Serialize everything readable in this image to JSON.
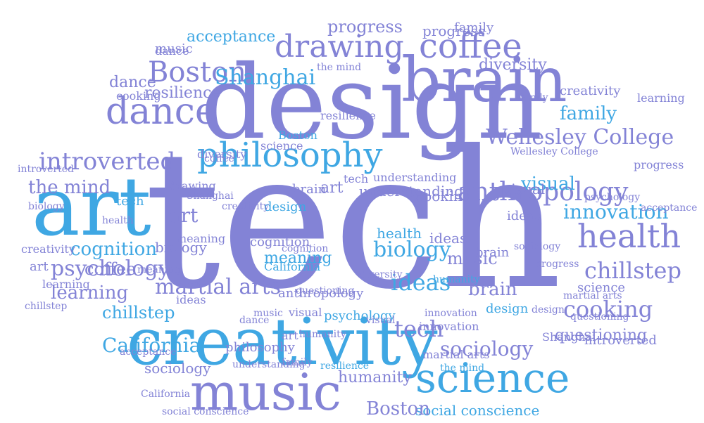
{
  "palette": {
    "purple": "#8383d6",
    "blue": "#3fa7e3",
    "background": "#ffffff"
  },
  "words": [
    {
      "text": "tech",
      "c": "p"
    },
    {
      "text": "design",
      "c": "p"
    },
    {
      "text": "art",
      "c": "b"
    },
    {
      "text": "creativity",
      "c": "b"
    },
    {
      "text": "brain",
      "c": "p"
    },
    {
      "text": "music",
      "c": "p"
    },
    {
      "text": "science",
      "c": "b"
    },
    {
      "text": "philosophy",
      "c": "b"
    },
    {
      "text": "dance",
      "c": "p"
    },
    {
      "text": "health",
      "c": "p"
    },
    {
      "text": "coffee",
      "c": "p"
    },
    {
      "text": "drawing",
      "c": "p"
    },
    {
      "text": "anthropology",
      "c": "p"
    },
    {
      "text": "Boston",
      "c": "p"
    },
    {
      "text": "introverted",
      "c": "p"
    },
    {
      "text": "Shanghai",
      "c": "b"
    },
    {
      "text": "Wellesley College",
      "c": "p"
    },
    {
      "text": "biology",
      "c": "b"
    },
    {
      "text": "chillstep",
      "c": "p"
    },
    {
      "text": "psychology",
      "c": "p"
    },
    {
      "text": "martial arts",
      "c": "p"
    },
    {
      "text": "cooking",
      "c": "p"
    },
    {
      "text": "ideas",
      "c": "b"
    },
    {
      "text": "sociology",
      "c": "p"
    },
    {
      "text": "California",
      "c": "b"
    },
    {
      "text": "innovation",
      "c": "b"
    },
    {
      "text": "visual",
      "c": "b"
    },
    {
      "text": "family",
      "c": "b"
    },
    {
      "text": "the mind",
      "c": "p"
    },
    {
      "text": "learning",
      "c": "p"
    },
    {
      "text": "cognition",
      "c": "b"
    },
    {
      "text": "progress",
      "c": "p"
    },
    {
      "text": "acceptance",
      "c": "b"
    },
    {
      "text": "diversity",
      "c": "p"
    },
    {
      "text": "resilience",
      "c": "p"
    },
    {
      "text": "meaning",
      "c": "b"
    },
    {
      "text": "questioning",
      "c": "p"
    },
    {
      "text": "understanding",
      "c": "p"
    },
    {
      "text": "humanity",
      "c": "p"
    },
    {
      "text": "social conscience",
      "c": "b"
    },
    {
      "text": "art",
      "c": "p"
    },
    {
      "text": "tech",
      "c": "p"
    },
    {
      "text": "art",
      "c": "p"
    },
    {
      "text": "visual",
      "c": "p"
    },
    {
      "text": "brain",
      "c": "p"
    },
    {
      "text": "design",
      "c": "b"
    },
    {
      "text": "Boston",
      "c": "p"
    },
    {
      "text": "ideas",
      "c": "p"
    },
    {
      "text": "music",
      "c": "p"
    },
    {
      "text": "sociology",
      "c": "p"
    },
    {
      "text": "cooking",
      "c": "p"
    },
    {
      "text": "brain",
      "c": "p"
    },
    {
      "text": "learning",
      "c": "p"
    },
    {
      "text": "California",
      "c": "b"
    },
    {
      "text": "dance",
      "c": "p"
    },
    {
      "text": "creativity",
      "c": "p"
    },
    {
      "text": "health",
      "c": "b"
    },
    {
      "text": "psychology",
      "c": "b"
    },
    {
      "text": "coffee",
      "c": "p"
    },
    {
      "text": "biology",
      "c": "p"
    },
    {
      "text": "tech",
      "c": "b"
    },
    {
      "text": "the mind",
      "c": "p"
    },
    {
      "text": "art",
      "c": "p"
    },
    {
      "text": "meaning",
      "c": "p"
    },
    {
      "text": "progress",
      "c": "p"
    },
    {
      "text": "family",
      "c": "p"
    },
    {
      "text": "diversity",
      "c": "p"
    },
    {
      "text": "chillstep",
      "c": "b"
    },
    {
      "text": "visual",
      "c": "p"
    },
    {
      "text": "design",
      "c": "b"
    },
    {
      "text": "humanity",
      "c": "b"
    },
    {
      "text": "science",
      "c": "p"
    },
    {
      "text": "questioning",
      "c": "p"
    },
    {
      "text": "innovation",
      "c": "p"
    },
    {
      "text": "creativity",
      "c": "p"
    },
    {
      "text": "introverted",
      "c": "p"
    },
    {
      "text": "martial arts",
      "c": "p"
    },
    {
      "text": "acceptance",
      "c": "p"
    },
    {
      "text": "music",
      "c": "p"
    },
    {
      "text": "Shanghai",
      "c": "p"
    },
    {
      "text": "progress",
      "c": "p"
    },
    {
      "text": "dance",
      "c": "p"
    },
    {
      "text": "understanding",
      "c": "p"
    },
    {
      "text": "resilience",
      "c": "p"
    },
    {
      "text": "ideas",
      "c": "p"
    },
    {
      "text": "cognition",
      "c": "p"
    },
    {
      "text": "family",
      "c": "p"
    },
    {
      "text": "Boston",
      "c": "b"
    },
    {
      "text": "drawing",
      "c": "p"
    },
    {
      "text": "anthropology",
      "c": "p"
    },
    {
      "text": "sociology",
      "c": "p"
    },
    {
      "text": "brain",
      "c": "p"
    },
    {
      "text": "tech",
      "c": "p"
    },
    {
      "text": "health",
      "c": "p"
    },
    {
      "text": "cooking",
      "c": "p"
    },
    {
      "text": "California",
      "c": "p"
    },
    {
      "text": "philosophy",
      "c": "p"
    },
    {
      "text": "science",
      "c": "p"
    },
    {
      "text": "learning",
      "c": "p"
    },
    {
      "text": "meaning",
      "c": "p"
    },
    {
      "text": "coffee",
      "c": "p"
    },
    {
      "text": "diversity",
      "c": "p"
    },
    {
      "text": "the mind",
      "c": "b"
    },
    {
      "text": "visual",
      "c": "p"
    },
    {
      "text": "art",
      "c": "p"
    },
    {
      "text": "design",
      "c": "p"
    },
    {
      "text": "innovation",
      "c": "p"
    },
    {
      "text": "humanity",
      "c": "p"
    },
    {
      "text": "chillstep",
      "c": "p"
    },
    {
      "text": "resilience",
      "c": "b"
    },
    {
      "text": "questioning",
      "c": "p"
    },
    {
      "text": "biology",
      "c": "p"
    },
    {
      "text": "Wellesley College",
      "c": "p"
    },
    {
      "text": "social conscience",
      "c": "p"
    },
    {
      "text": "acceptance",
      "c": "p"
    },
    {
      "text": "psychology",
      "c": "p"
    },
    {
      "text": "martial arts",
      "c": "p"
    },
    {
      "text": "music",
      "c": "p"
    },
    {
      "text": "creativity",
      "c": "p"
    },
    {
      "text": "ideas",
      "c": "p"
    },
    {
      "text": "Shanghai",
      "c": "p"
    },
    {
      "text": "cognition",
      "c": "p"
    },
    {
      "text": "understanding",
      "c": "p"
    },
    {
      "text": "family",
      "c": "p"
    },
    {
      "text": "introverted",
      "c": "p"
    },
    {
      "text": "progress",
      "c": "p"
    },
    {
      "text": "dance",
      "c": "p"
    }
  ]
}
